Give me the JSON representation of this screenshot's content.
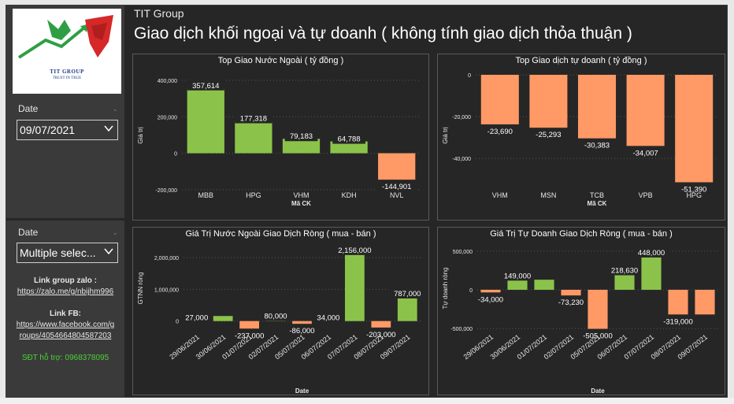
{
  "colors": {
    "positive": "#8bc34a",
    "negative": "#ff9966",
    "support": "#4cd137",
    "label_bg": "#262626"
  },
  "brand": {
    "logo_name": "TIT GROUP",
    "logo_tagline": "TRUST IN TRUE"
  },
  "header": {
    "org": "TIT Group",
    "title": "Giao dịch khối ngoại và tự doanh ( không tính giao dịch thỏa thuận )"
  },
  "sidebar": {
    "date_label": "Date",
    "date_value": "09/07/2021",
    "date2_label": "Date",
    "date2_value": "Multiple selec...",
    "zalo_label": "Link group zalo :",
    "zalo_url": "https://zalo.me/g/nbijhm996",
    "fb_label": "Link FB:",
    "fb_url_line1": "https://www.facebook.com/g",
    "fb_url_line2": "roups/4054664804587203",
    "support": "SĐT hỗ trợ: 0968378095"
  },
  "chart_data": [
    {
      "type": "bar",
      "title": "Top Giao Nước Ngoài ( tỷ đồng )",
      "xlabel": "Mã CK",
      "ylabel": "Giá trị",
      "categories": [
        "MBB",
        "HPG",
        "VHM",
        "KDH",
        "NVL"
      ],
      "values": [
        357614,
        177318,
        79183,
        64788,
        -144901
      ],
      "value_labels": [
        "357,614",
        "177,318",
        "79,183",
        "64,788",
        "-144,901"
      ],
      "yticks": [
        400000,
        200000,
        0,
        -200000
      ],
      "ytick_labels": [
        "400,000",
        "200,000",
        "0",
        "-200,000"
      ],
      "ylim": [
        -235000,
        430000
      ]
    },
    {
      "type": "bar",
      "title": "Top Giao dịch tự doanh ( tỷ đồng )",
      "xlabel": "Mã CK",
      "ylabel": "Giá trị",
      "categories": [
        "VHM",
        "MSN",
        "TCB",
        "VPB",
        "HPG"
      ],
      "values": [
        -23690,
        -25293,
        -30383,
        -34007,
        -51390
      ],
      "value_labels": [
        "-23,690",
        "-25,293",
        "-30,383",
        "-34,007",
        "-51,390"
      ],
      "yticks": [
        0,
        -20000,
        -40000
      ],
      "ytick_labels": [
        "0",
        "-20,000",
        "-40,000"
      ],
      "ylim": [
        -58000,
        0
      ]
    },
    {
      "type": "bar",
      "title": "Giá Trị Nước Ngoài Giao Dịch Ròng ( mua - bán )",
      "xlabel": "Date",
      "ylabel": "GTNN ròng",
      "categories": [
        "29/06/2021",
        "30/06/2021",
        "01/07/2021",
        "02/07/2021",
        "05/07/2021",
        "06/07/2021",
        "07/07/2021",
        "08/07/2021",
        "09/07/2021"
      ],
      "values": [
        27000,
        160000,
        -237000,
        80000,
        -86000,
        34000,
        2156000,
        -203000,
        787000
      ],
      "value_labels": [
        "27,000",
        "",
        "-237,000",
        "80,000",
        "-86,000",
        "34,000",
        "2,156,000",
        "-203,000",
        "787,000"
      ],
      "yticks": [
        2000000,
        1000000,
        0
      ],
      "ytick_labels": [
        "2,000,000",
        "1,000,000",
        "0"
      ],
      "ylim": [
        -330000,
        2400000
      ]
    },
    {
      "type": "bar",
      "title": "Giá Trị Tự Doanh Giao Dịch Ròng ( mua - bán )",
      "xlabel": "Date",
      "ylabel": "Tự doanh ròng",
      "categories": [
        "29/06/2021",
        "30/06/2021",
        "01/07/2021",
        "02/07/2021",
        "05/07/2021",
        "06/07/2021",
        "07/07/2021",
        "08/07/2021",
        "09/07/2021"
      ],
      "values": [
        -34000,
        149000,
        130000,
        -73230,
        -505000,
        218630,
        448000,
        -319000,
        -319000
      ],
      "value_labels": [
        "-34,000",
        "149,000",
        "",
        "-73,230",
        "-505,000",
        "218,630",
        "448,000",
        "-319,000",
        ""
      ],
      "yticks": [
        500000,
        0,
        -500000
      ],
      "ytick_labels": [
        "500,000",
        "0",
        "-500,000"
      ],
      "ylim": [
        -540000,
        580000
      ]
    }
  ]
}
